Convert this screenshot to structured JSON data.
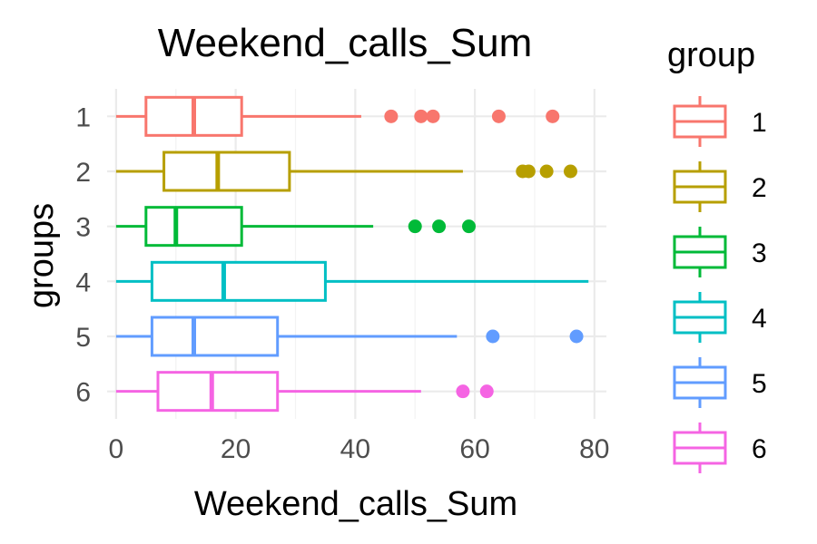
{
  "chart_data": {
    "type": "boxplot",
    "orientation": "horizontal",
    "title": "Weekend_calls_Sum",
    "xlabel": "Weekend_calls_Sum",
    "ylabel": "groups",
    "xlim": [
      -1.5,
      82
    ],
    "x_ticks": [
      0,
      20,
      40,
      60,
      80
    ],
    "grid": true,
    "legend": {
      "title": "group",
      "position": "right"
    },
    "groups": [
      {
        "name": "1",
        "color": "#F8766D",
        "whisker_low": 0,
        "q1": 5,
        "median": 13,
        "q3": 21,
        "whisker_high": 41,
        "outliers": [
          46,
          51,
          53,
          64,
          73
        ]
      },
      {
        "name": "2",
        "color": "#B79F00",
        "whisker_low": 0,
        "q1": 8,
        "median": 17,
        "q3": 29,
        "whisker_high": 58,
        "outliers": [
          68,
          69,
          72,
          76
        ]
      },
      {
        "name": "3",
        "color": "#00BA38",
        "whisker_low": 0,
        "q1": 5,
        "median": 10,
        "q3": 21,
        "whisker_high": 43,
        "outliers": [
          50,
          54,
          59
        ]
      },
      {
        "name": "4",
        "color": "#00BFC4",
        "whisker_low": 0,
        "q1": 6,
        "median": 18,
        "q3": 35,
        "whisker_high": 79,
        "outliers": []
      },
      {
        "name": "5",
        "color": "#619CFF",
        "whisker_low": 0,
        "q1": 6,
        "median": 13,
        "q3": 27,
        "whisker_high": 57,
        "outliers": [
          63,
          77
        ]
      },
      {
        "name": "6",
        "color": "#F564E3",
        "whisker_low": 0,
        "q1": 7,
        "median": 16,
        "q3": 27,
        "whisker_high": 51,
        "outliers": [
          58,
          62
        ]
      }
    ]
  }
}
